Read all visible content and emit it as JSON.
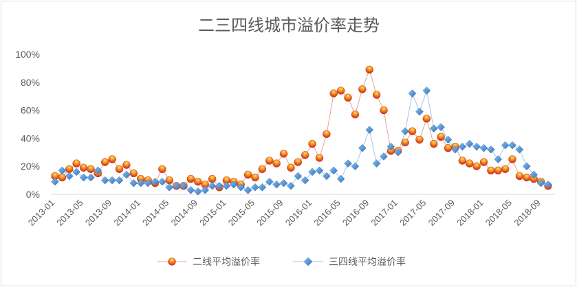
{
  "chart_data": {
    "type": "line",
    "title": "二三四线城市溢价率走势",
    "xlabel": "",
    "ylabel": "",
    "ylim": [
      0,
      100
    ],
    "yticks": [
      "0%",
      "20%",
      "40%",
      "60%",
      "80%",
      "100%"
    ],
    "grid": false,
    "legend": "bottom",
    "x": [
      "2013-01",
      "2013-02",
      "2013-03",
      "2013-04",
      "2013-05",
      "2013-06",
      "2013-07",
      "2013-08",
      "2013-09",
      "2013-10",
      "2013-11",
      "2013-12",
      "2014-01",
      "2014-02",
      "2014-03",
      "2014-04",
      "2014-05",
      "2014-06",
      "2014-07",
      "2014-08",
      "2014-09",
      "2014-10",
      "2014-11",
      "2014-12",
      "2015-01",
      "2015-02",
      "2015-03",
      "2015-04",
      "2015-05",
      "2015-06",
      "2015-07",
      "2015-08",
      "2015-09",
      "2015-10",
      "2015-11",
      "2015-12",
      "2016-01",
      "2016-02",
      "2016-03",
      "2016-04",
      "2016-05",
      "2016-06",
      "2016-07",
      "2016-08",
      "2016-09",
      "2016-10",
      "2016-11",
      "2016-12",
      "2017-01",
      "2017-02",
      "2017-03",
      "2017-04",
      "2017-05",
      "2017-06",
      "2017-07",
      "2017-08",
      "2017-09",
      "2017-10",
      "2017-11",
      "2017-12",
      "2018-01",
      "2018-02",
      "2018-03",
      "2018-04",
      "2018-05",
      "2018-06",
      "2018-07",
      "2018-08",
      "2018-09",
      "2018-10"
    ],
    "x_tick_labels": [
      "2013-01",
      "2013-05",
      "2013-09",
      "2014-01",
      "2014-05",
      "2014-09",
      "2015-01",
      "2015-05",
      "2015-09",
      "2016-01",
      "2016-05",
      "2016-09",
      "2017-01",
      "2017-05",
      "2017-09",
      "2018-01",
      "2018-05",
      "2018-09"
    ],
    "series": [
      {
        "name": "二线平均溢价率",
        "color": "#e8501a",
        "marker": "circle",
        "values": [
          13,
          12,
          18,
          22,
          19,
          18,
          15,
          23,
          25,
          18,
          21,
          15,
          11,
          10,
          8,
          18,
          10,
          6,
          6,
          11,
          9,
          7,
          11,
          5,
          10,
          9,
          7,
          14,
          12,
          18,
          24,
          22,
          29,
          19,
          23,
          28,
          36,
          26,
          43,
          72,
          74,
          69,
          57,
          75,
          89,
          71,
          60,
          31,
          31,
          37,
          45,
          39,
          54,
          36,
          41,
          33,
          34,
          24,
          22,
          20,
          23,
          17,
          17,
          18,
          25,
          13,
          12,
          11,
          9,
          6
        ]
      },
      {
        "name": "三四线平均溢价率",
        "color": "#4a8fd4",
        "marker": "diamond",
        "values": [
          9,
          17,
          13,
          16,
          12,
          12,
          17,
          10,
          10,
          10,
          14,
          8,
          8,
          8,
          9,
          9,
          5,
          6,
          6,
          3,
          2,
          3,
          6,
          6,
          6,
          7,
          5,
          3,
          5,
          5,
          9,
          7,
          8,
          6,
          13,
          10,
          16,
          17,
          13,
          17,
          11,
          22,
          20,
          33,
          46,
          22,
          27,
          34,
          30,
          45,
          72,
          59,
          74,
          47,
          48,
          39,
          32,
          34,
          36,
          34,
          33,
          32,
          25,
          35,
          35,
          32,
          20,
          14,
          8,
          7
        ]
      }
    ]
  }
}
